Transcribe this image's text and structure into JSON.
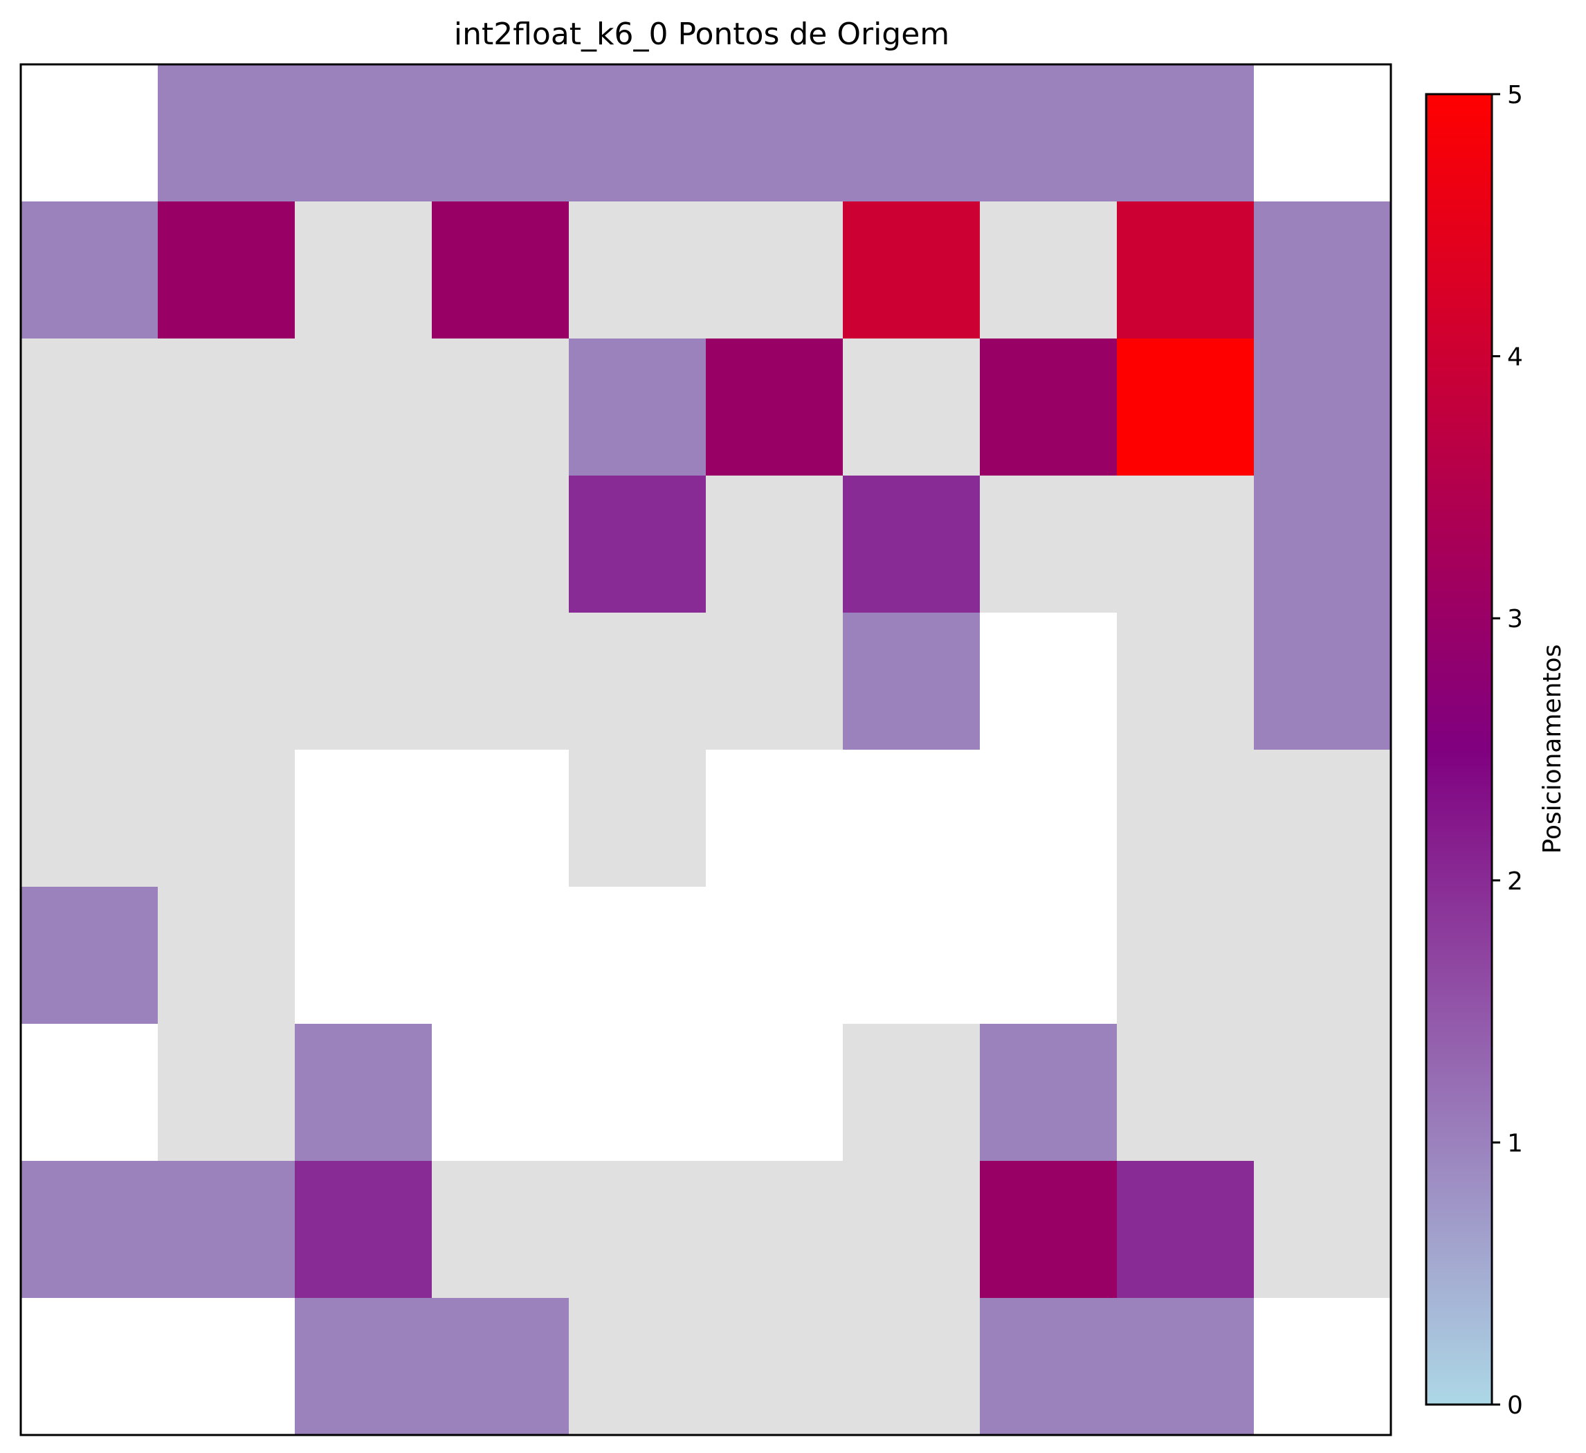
{
  "chart_data": {
    "type": "heatmap",
    "title": "int2float_k6_0 Pontos de Origem",
    "xlabel": "",
    "ylabel": "",
    "grid": false,
    "rows": 10,
    "cols": 10,
    "null_color": "#ffffff",
    "zero_color": "#e0e0e0",
    "values": [
      [
        null,
        1,
        1,
        1,
        1,
        1,
        1,
        1,
        1,
        null
      ],
      [
        1,
        3,
        0,
        3,
        0,
        0,
        4,
        0,
        4,
        1
      ],
      [
        0,
        0,
        0,
        0,
        1,
        3,
        0,
        3,
        5,
        1
      ],
      [
        0,
        0,
        0,
        0,
        2,
        0,
        2,
        0,
        0,
        1
      ],
      [
        0,
        0,
        0,
        0,
        0,
        0,
        1,
        null,
        0,
        1
      ],
      [
        0,
        0,
        null,
        null,
        0,
        null,
        null,
        null,
        0,
        0
      ],
      [
        1,
        0,
        null,
        null,
        null,
        null,
        null,
        null,
        0,
        0
      ],
      [
        null,
        0,
        1,
        null,
        null,
        null,
        0,
        1,
        0,
        0
      ],
      [
        1,
        1,
        2,
        0,
        0,
        0,
        0,
        3,
        2,
        0
      ],
      [
        null,
        null,
        1,
        1,
        0,
        0,
        0,
        1,
        1,
        null
      ]
    ],
    "colorbar": {
      "label": "Posicionamentos",
      "min": 0,
      "max": 5,
      "ticks": [
        "0",
        "1",
        "2",
        "3",
        "4",
        "5"
      ],
      "colors": [
        "#add8e6",
        "#800080",
        "#ff0000"
      ]
    }
  }
}
